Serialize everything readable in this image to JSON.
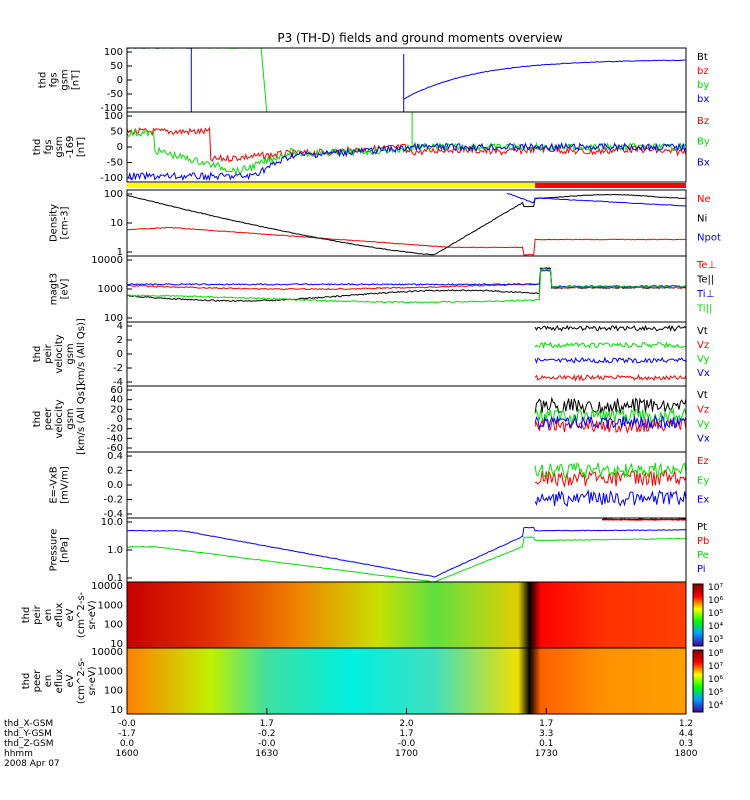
{
  "title": "P3 (TH-D) fields and ground moments overview",
  "colors": {
    "black": "#000000",
    "red": "#ff0000",
    "green": "#00e000",
    "blue": "#0000ff",
    "yellow": "#ffff00"
  },
  "chart_data": [
    {
      "id": "fgs",
      "type": "line",
      "ylabel": [
        "thd",
        "fgs",
        "gsm",
        "[nT]"
      ],
      "yticks": [
        "100",
        "50",
        "0",
        "-50",
        "-100"
      ],
      "ylim": [
        -100,
        100
      ],
      "series": [
        {
          "name": "Bt",
          "color": "black"
        },
        {
          "name": "bz",
          "color": "red"
        },
        {
          "name": "by",
          "color": "green"
        },
        {
          "name": "bx",
          "color": "blue"
        }
      ]
    },
    {
      "id": "fgs2",
      "type": "line",
      "ylabel": [
        "thd",
        "fgs",
        "gsm",
        "-169",
        "[nT]"
      ],
      "yticks": [
        "100",
        "50",
        "0",
        "-50",
        "-100"
      ],
      "ylim": [
        -100,
        100
      ],
      "series": [
        {
          "name": "Bz",
          "color": "red"
        },
        {
          "name": "By",
          "color": "green"
        },
        {
          "name": "Bx",
          "color": "blue"
        }
      ]
    },
    {
      "id": "density",
      "type": "line",
      "ylabel": [
        "Density",
        "[cm-3]"
      ],
      "yticks": [
        "100",
        "10",
        "1"
      ],
      "log": true,
      "series": [
        {
          "name": "Ne",
          "color": "red"
        },
        {
          "name": "Ni",
          "color": "black"
        },
        {
          "name": "Npot",
          "color": "blue"
        }
      ]
    },
    {
      "id": "temp",
      "type": "line",
      "ylabel": [
        "magt3",
        "[eV]"
      ],
      "yticks": [
        "10000",
        "1000",
        "100"
      ],
      "log": true,
      "series": [
        {
          "name": "Te⊥",
          "color": "red"
        },
        {
          "name": "Te||",
          "color": "black"
        },
        {
          "name": "Ti⊥",
          "color": "blue"
        },
        {
          "name": "Ti||",
          "color": "green"
        }
      ]
    },
    {
      "id": "peir",
      "type": "line",
      "ylabel": [
        "thd",
        "peir",
        "velocity",
        "gsm",
        "[km/s (All Qs)]"
      ],
      "yticks": [
        "4",
        "2",
        "0",
        "-2",
        "-4"
      ],
      "ylim": [
        -4,
        4
      ],
      "series": [
        {
          "name": "Vt",
          "color": "black"
        },
        {
          "name": "Vz",
          "color": "red"
        },
        {
          "name": "Vy",
          "color": "green"
        },
        {
          "name": "Vx",
          "color": "blue"
        }
      ]
    },
    {
      "id": "peer",
      "type": "line",
      "ylabel": [
        "thd",
        "peer",
        "velocity",
        "gsm",
        "[km/s (All Qs)]"
      ],
      "yticks": [
        "60",
        "40",
        "20",
        "0",
        "-20",
        "-40",
        "-60"
      ],
      "ylim": [
        -60,
        60
      ],
      "series": [
        {
          "name": "Vt",
          "color": "black"
        },
        {
          "name": "Vz",
          "color": "red"
        },
        {
          "name": "Vy",
          "color": "green"
        },
        {
          "name": "Vx",
          "color": "blue"
        }
      ]
    },
    {
      "id": "efield",
      "type": "line",
      "ylabel": [
        "E=-VxB",
        "[mV/m]"
      ],
      "yticks": [
        "0.4",
        "0.2",
        "0.0",
        "-0.2",
        "-0.4"
      ],
      "ylim": [
        -0.4,
        0.4
      ],
      "series": [
        {
          "name": "Ez",
          "color": "red"
        },
        {
          "name": "Ey",
          "color": "green"
        },
        {
          "name": "Ex",
          "color": "blue"
        }
      ]
    },
    {
      "id": "pressure",
      "type": "line",
      "ylabel": [
        "Pressure",
        "[nPa]"
      ],
      "yticks": [
        "10.0",
        "1.0",
        "0.1"
      ],
      "log": true,
      "series": [
        {
          "name": "Pt",
          "color": "black"
        },
        {
          "name": "Pb",
          "color": "red"
        },
        {
          "name": "Pe",
          "color": "green"
        },
        {
          "name": "Pi",
          "color": "blue"
        }
      ]
    },
    {
      "id": "peir_spec",
      "type": "heatmap",
      "ylabel": [
        "thd",
        "peir",
        "en",
        "eflux",
        "eV",
        "(cm^2-s-",
        "sr-eV)"
      ],
      "yticks": [
        "10000",
        "1000",
        "100",
        "10"
      ],
      "cbar": [
        "10⁷",
        "10⁶",
        "10⁵",
        "10⁴",
        "10³"
      ]
    },
    {
      "id": "peer_spec",
      "type": "heatmap",
      "ylabel": [
        "thd",
        "peer",
        "en",
        "eflux",
        "eV",
        "(cm^2-s-",
        "sr-eV)"
      ],
      "yticks": [
        "10000",
        "1000",
        "100",
        "10"
      ],
      "cbar": [
        "10⁸",
        "10⁷",
        "10⁶",
        "10⁵",
        "10⁴"
      ]
    }
  ],
  "xaxis": {
    "rows": [
      {
        "label": "thd_X-GSM",
        "values": [
          "-0.0",
          "1.7",
          "2.0",
          "1.7",
          "1.2"
        ]
      },
      {
        "label": "thd_Y-GSM",
        "values": [
          "-1.7",
          "-0.2",
          "1.7",
          "3.3",
          "4.4"
        ]
      },
      {
        "label": "thd_Z-GSM",
        "values": [
          "0.0",
          "-0.0",
          "-0.0",
          "0.1",
          "0.3"
        ]
      },
      {
        "label": "hhmm",
        "values": [
          "1600",
          "1630",
          "1700",
          "1730",
          "1800"
        ]
      }
    ],
    "date": "2008 Apr 07"
  }
}
